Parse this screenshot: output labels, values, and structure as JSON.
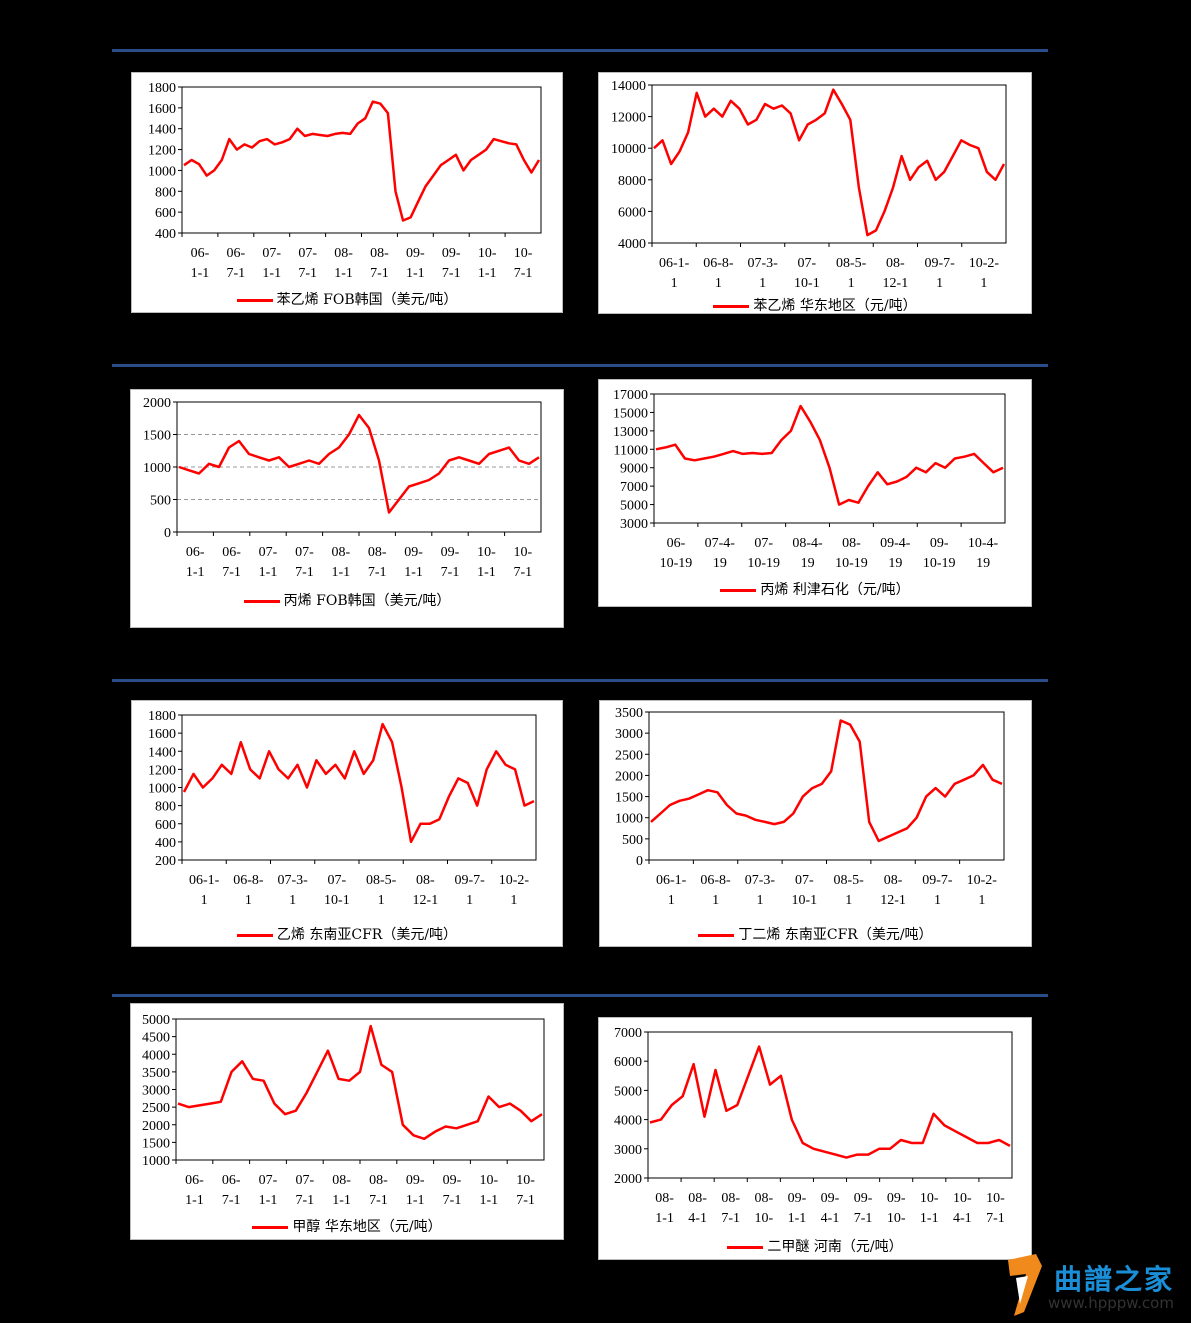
{
  "logo": {
    "text": "曲譜之家",
    "url": "www.hpppw.com",
    "icon": "logo-mark-icon",
    "color": "#1a8fd8"
  },
  "colors": {
    "series": "#ff0000",
    "rule": "#2a4d8a"
  },
  "chart_data": [
    {
      "type": "line",
      "legend": "苯乙烯 FOB韩国（美元/吨）",
      "ylim": [
        400,
        1800
      ],
      "yticks": [
        400,
        600,
        800,
        1000,
        1200,
        1400,
        1600,
        1800
      ],
      "xticks": [
        [
          "06-",
          "1-1"
        ],
        [
          "06-",
          "7-1"
        ],
        [
          "07-",
          "1-1"
        ],
        [
          "07-",
          "7-1"
        ],
        [
          "08-",
          "1-1"
        ],
        [
          "08-",
          "7-1"
        ],
        [
          "09-",
          "1-1"
        ],
        [
          "09-",
          "7-1"
        ],
        [
          "10-",
          "1-1"
        ],
        [
          "10-",
          "7-1"
        ]
      ],
      "grid": false,
      "series": [
        {
          "values": [
            1050,
            1100,
            1060,
            950,
            1000,
            1100,
            1300,
            1200,
            1250,
            1220,
            1280,
            1300,
            1250,
            1270,
            1300,
            1400,
            1330,
            1350,
            1340,
            1330,
            1350,
            1360,
            1350,
            1450,
            1500,
            1660,
            1640,
            1550,
            800,
            520,
            550,
            700,
            850,
            950,
            1050,
            1100,
            1150,
            1000,
            1100,
            1150,
            1200,
            1300,
            1280,
            1260,
            1250,
            1100,
            980,
            1100
          ]
        }
      ]
    },
    {
      "type": "line",
      "legend": "苯乙烯 华东地区（元/吨）",
      "ylim": [
        4000,
        14000
      ],
      "yticks": [
        4000,
        6000,
        8000,
        10000,
        12000,
        14000
      ],
      "xticks": [
        [
          "06-1-",
          "1"
        ],
        [
          "06-8-",
          "1"
        ],
        [
          "07-3-",
          "1"
        ],
        [
          "07-",
          "10-1"
        ],
        [
          "08-5-",
          "1"
        ],
        [
          "08-",
          "12-1"
        ],
        [
          "09-7-",
          "1"
        ],
        [
          "10-2-",
          "1"
        ]
      ],
      "grid": false,
      "series": [
        {
          "values": [
            10000,
            10500,
            9000,
            9800,
            11000,
            13500,
            12000,
            12500,
            12000,
            13000,
            12500,
            11500,
            11800,
            12800,
            12500,
            12700,
            12200,
            10500,
            11500,
            11800,
            12200,
            13700,
            12800,
            11800,
            7500,
            4500,
            4800,
            6000,
            7500,
            9500,
            8000,
            8800,
            9200,
            8000,
            8500,
            9500,
            10500,
            10200,
            10000,
            8500,
            8000,
            9000
          ]
        }
      ]
    },
    {
      "type": "line",
      "legend": "丙烯 FOB韩国（美元/吨）",
      "ylim": [
        0,
        2000
      ],
      "yticks": [
        0,
        500,
        1000,
        1500,
        2000
      ],
      "xticks": [
        [
          "06-",
          "1-1"
        ],
        [
          "06-",
          "7-1"
        ],
        [
          "07-",
          "1-1"
        ],
        [
          "07-",
          "7-1"
        ],
        [
          "08-",
          "1-1"
        ],
        [
          "08-",
          "7-1"
        ],
        [
          "09-",
          "1-1"
        ],
        [
          "09-",
          "7-1"
        ],
        [
          "10-",
          "1-1"
        ],
        [
          "10-",
          "7-1"
        ]
      ],
      "grid": true,
      "series": [
        {
          "values": [
            1000,
            950,
            900,
            1050,
            1000,
            1300,
            1400,
            1200,
            1150,
            1100,
            1150,
            1000,
            1050,
            1100,
            1050,
            1200,
            1300,
            1500,
            1800,
            1600,
            1100,
            300,
            500,
            700,
            750,
            800,
            900,
            1100,
            1150,
            1100,
            1050,
            1200,
            1250,
            1300,
            1100,
            1050,
            1150
          ]
        }
      ]
    },
    {
      "type": "line",
      "legend": "丙烯 利津石化（元/吨）",
      "ylim": [
        3000,
        17000
      ],
      "yticks": [
        3000,
        5000,
        7000,
        9000,
        11000,
        13000,
        15000,
        17000
      ],
      "xticks": [
        [
          "06-",
          "10-19"
        ],
        [
          "07-4-",
          "19"
        ],
        [
          "07-",
          "10-19"
        ],
        [
          "08-4-",
          "19"
        ],
        [
          "08-",
          "10-19"
        ],
        [
          "09-4-",
          "19"
        ],
        [
          "09-",
          "10-19"
        ],
        [
          "10-4-",
          "19"
        ]
      ],
      "grid": false,
      "series": [
        {
          "values": [
            11000,
            11200,
            11500,
            10000,
            9800,
            10000,
            10200,
            10500,
            10800,
            10500,
            10600,
            10500,
            10600,
            12000,
            13000,
            15700,
            14000,
            12000,
            9000,
            5000,
            5500,
            5200,
            7000,
            8500,
            7200,
            7500,
            8000,
            9000,
            8500,
            9500,
            9000,
            10000,
            10200,
            10500,
            9500,
            8500,
            9000
          ]
        }
      ]
    },
    {
      "type": "line",
      "legend": "乙烯 东南亚CFR（美元/吨）",
      "ylim": [
        200,
        1800
      ],
      "yticks": [
        200,
        400,
        600,
        800,
        1000,
        1200,
        1400,
        1600,
        1800
      ],
      "xticks": [
        [
          "06-1-",
          "1"
        ],
        [
          "06-8-",
          "1"
        ],
        [
          "07-3-",
          "1"
        ],
        [
          "07-",
          "10-1"
        ],
        [
          "08-5-",
          "1"
        ],
        [
          "08-",
          "12-1"
        ],
        [
          "09-7-",
          "1"
        ],
        [
          "10-2-",
          "1"
        ]
      ],
      "grid": false,
      "series": [
        {
          "values": [
            950,
            1150,
            1000,
            1100,
            1250,
            1150,
            1500,
            1200,
            1100,
            1400,
            1200,
            1100,
            1250,
            1000,
            1300,
            1150,
            1250,
            1100,
            1400,
            1150,
            1300,
            1700,
            1500,
            1000,
            400,
            600,
            600,
            650,
            900,
            1100,
            1050,
            800,
            1200,
            1400,
            1250,
            1200,
            800,
            850
          ]
        }
      ]
    },
    {
      "type": "line",
      "legend": "丁二烯 东南亚CFR（美元/吨）",
      "ylim": [
        0,
        3500
      ],
      "yticks": [
        0,
        500,
        1000,
        1500,
        2000,
        2500,
        3000,
        3500
      ],
      "xticks": [
        [
          "06-1-",
          "1"
        ],
        [
          "06-8-",
          "1"
        ],
        [
          "07-3-",
          "1"
        ],
        [
          "07-",
          "10-1"
        ],
        [
          "08-5-",
          "1"
        ],
        [
          "08-",
          "12-1"
        ],
        [
          "09-7-",
          "1"
        ],
        [
          "10-2-",
          "1"
        ]
      ],
      "grid": false,
      "series": [
        {
          "values": [
            900,
            1100,
            1300,
            1400,
            1450,
            1550,
            1650,
            1600,
            1300,
            1100,
            1050,
            950,
            900,
            850,
            900,
            1100,
            1500,
            1700,
            1800,
            2100,
            3300,
            3200,
            2800,
            900,
            450,
            550,
            650,
            750,
            1000,
            1500,
            1700,
            1500,
            1800,
            1900,
            2000,
            2250,
            1900,
            1800
          ]
        }
      ]
    },
    {
      "type": "line",
      "legend": "甲醇 华东地区（元/吨）",
      "ylim": [
        1000,
        5000
      ],
      "yticks": [
        1000,
        1500,
        2000,
        2500,
        3000,
        3500,
        4000,
        4500,
        5000
      ],
      "xticks": [
        [
          "06-",
          "1-1"
        ],
        [
          "06-",
          "7-1"
        ],
        [
          "07-",
          "1-1"
        ],
        [
          "07-",
          "7-1"
        ],
        [
          "08-",
          "1-1"
        ],
        [
          "08-",
          "7-1"
        ],
        [
          "09-",
          "1-1"
        ],
        [
          "09-",
          "7-1"
        ],
        [
          "10-",
          "1-1"
        ],
        [
          "10-",
          "7-1"
        ]
      ],
      "grid": false,
      "series": [
        {
          "values": [
            2600,
            2500,
            2550,
            2600,
            2650,
            3500,
            3800,
            3300,
            3250,
            2600,
            2300,
            2400,
            2900,
            3500,
            4100,
            3300,
            3250,
            3500,
            4800,
            3700,
            3500,
            2000,
            1700,
            1600,
            1800,
            1950,
            1900,
            2000,
            2100,
            2800,
            2500,
            2600,
            2400,
            2100,
            2300
          ]
        }
      ]
    },
    {
      "type": "line",
      "legend": "二甲醚 河南（元/吨）",
      "ylim": [
        2000,
        7000
      ],
      "yticks": [
        2000,
        3000,
        4000,
        5000,
        6000,
        7000
      ],
      "xticks": [
        [
          "08-",
          "1-1"
        ],
        [
          "08-",
          "4-1"
        ],
        [
          "08-",
          "7-1"
        ],
        [
          "08-",
          "10-"
        ],
        [
          "09-",
          "1-1"
        ],
        [
          "09-",
          "4-1"
        ],
        [
          "09-",
          "7-1"
        ],
        [
          "09-",
          "10-"
        ],
        [
          "10-",
          "1-1"
        ],
        [
          "10-",
          "4-1"
        ],
        [
          "10-",
          "7-1"
        ]
      ],
      "grid": false,
      "series": [
        {
          "values": [
            3900,
            4000,
            4500,
            4800,
            5900,
            4100,
            5700,
            4300,
            4500,
            5500,
            6500,
            5200,
            5500,
            4000,
            3200,
            3000,
            2900,
            2800,
            2700,
            2800,
            2800,
            3000,
            3000,
            3300,
            3200,
            3200,
            4200,
            3800,
            3600,
            3400,
            3200,
            3200,
            3300,
            3100
          ]
        }
      ]
    }
  ]
}
